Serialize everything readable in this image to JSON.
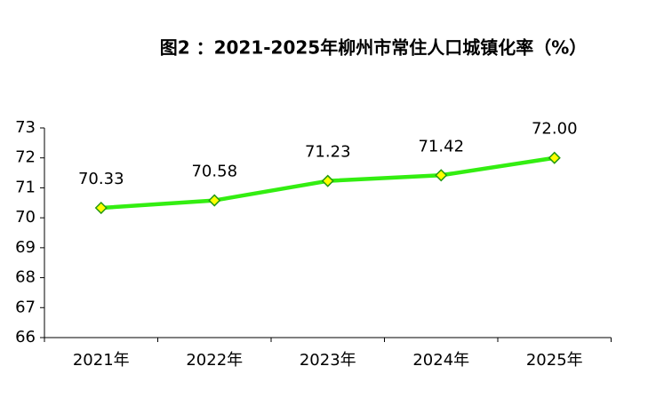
{
  "chart_data": {
    "type": "line",
    "title": "图2 ：2021-2025年柳州市常住人口城镇化率（%）",
    "categories": [
      "2021年",
      "2022年",
      "2023年",
      "2024年",
      "2025年"
    ],
    "series": [
      {
        "name": "城镇化率",
        "color": "#33ee11",
        "values": [
          70.33,
          70.58,
          71.23,
          71.42,
          72
        ],
        "value_labels": [
          "70.33",
          "70.58",
          "71.23",
          "71.42",
          "72.00"
        ]
      }
    ],
    "ylim": [
      66,
      73
    ],
    "yticks": [
      66,
      67,
      68,
      69,
      70,
      71,
      72,
      73
    ],
    "grid": false
  }
}
